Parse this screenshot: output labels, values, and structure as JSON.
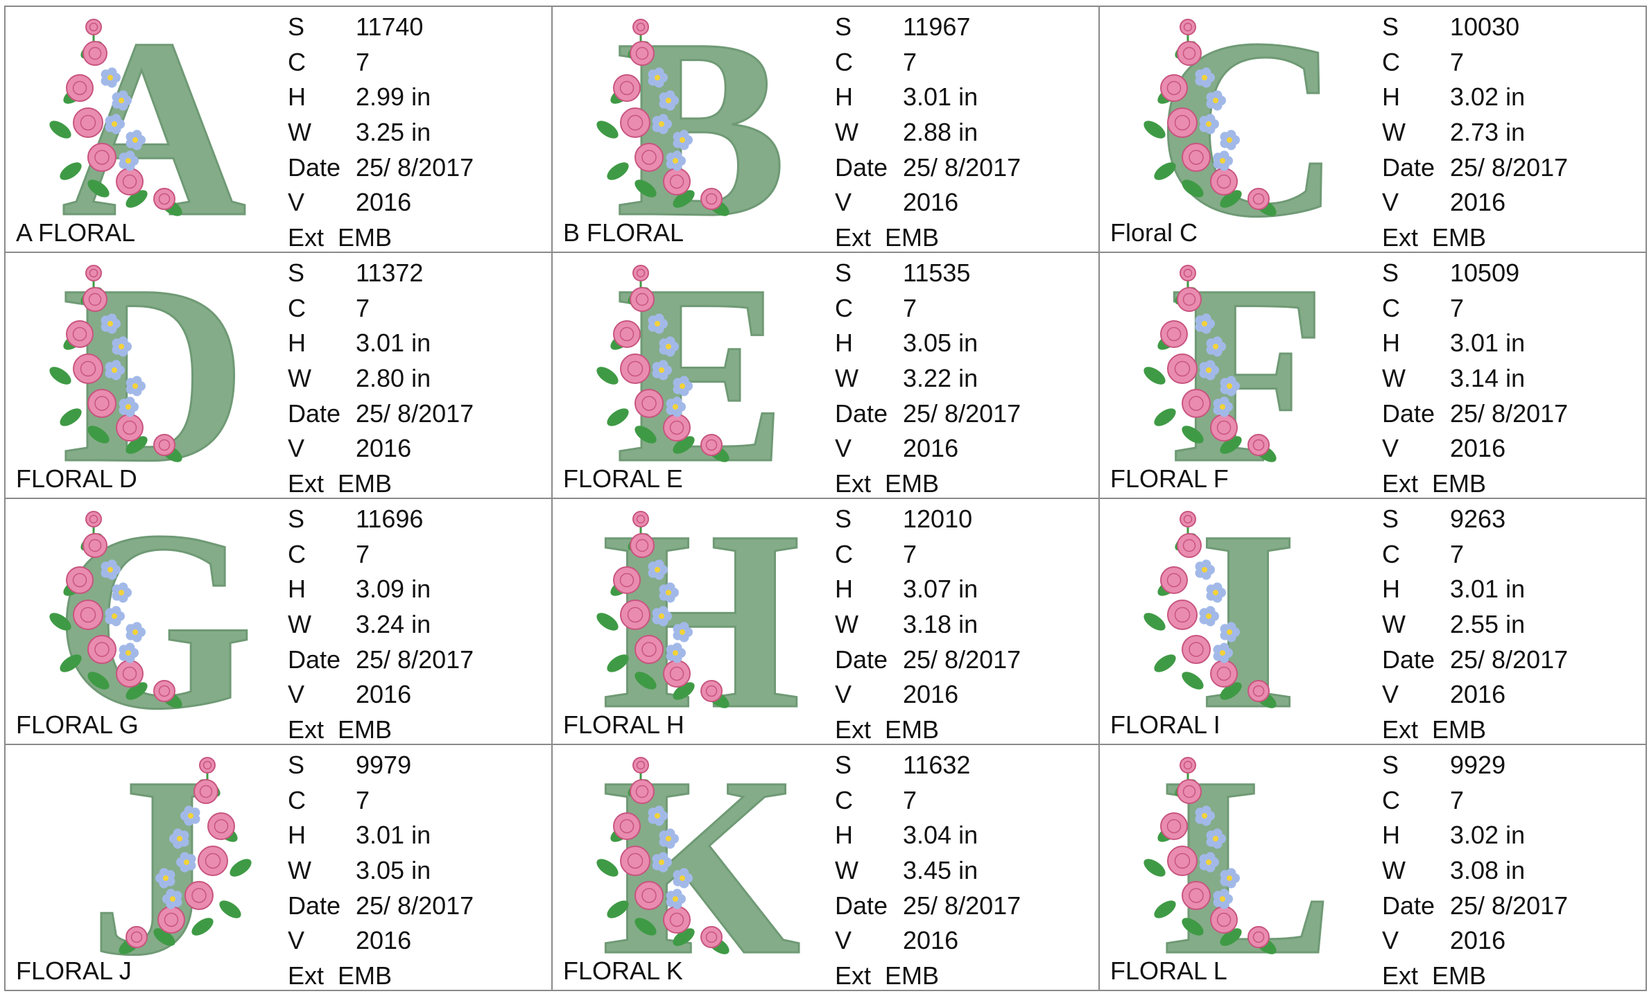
{
  "colors": {
    "letter": "#84ac88",
    "letter_stitch": "#6f9a75",
    "rose": "#e98cb0",
    "rose_dark": "#c8557f",
    "forget_me_not": "#a2b9e8",
    "flower_center": "#f3d23a",
    "leaf": "#3f9a45",
    "grid_line": "#8a8a8a"
  },
  "labels": {
    "stitches": "S",
    "colors": "C",
    "height": "H",
    "width": "W",
    "date": "Date",
    "version": "V",
    "extension": "Ext"
  },
  "designs": [
    {
      "letter": "A",
      "name": "A FLORAL",
      "stitches": "11740",
      "colors": "7",
      "height": "2.99 in",
      "width": "3.25 in",
      "date": "25/ 8/2017",
      "version": "2016",
      "ext": "EMB",
      "flower_icon": "rose-cluster-left-icon"
    },
    {
      "letter": "B",
      "name": "B FLORAL",
      "stitches": "11967",
      "colors": "7",
      "height": "3.01 in",
      "width": "2.88 in",
      "date": "25/ 8/2017",
      "version": "2016",
      "ext": "EMB",
      "flower_icon": "rose-cluster-left-icon"
    },
    {
      "letter": "C",
      "name": "Floral C",
      "stitches": "10030",
      "colors": "7",
      "height": "3.02 in",
      "width": "2.73 in",
      "date": "25/ 8/2017",
      "version": "2016",
      "ext": "EMB",
      "flower_icon": "rose-cluster-left-icon"
    },
    {
      "letter": "D",
      "name": "FLORAL D",
      "stitches": "11372",
      "colors": "7",
      "height": "3.01 in",
      "width": "2.80 in",
      "date": "25/ 8/2017",
      "version": "2016",
      "ext": "EMB",
      "flower_icon": "rose-cluster-left-icon"
    },
    {
      "letter": "E",
      "name": "FLORAL E",
      "stitches": "11535",
      "colors": "7",
      "height": "3.05 in",
      "width": "3.22 in",
      "date": "25/ 8/2017",
      "version": "2016",
      "ext": "EMB",
      "flower_icon": "rose-cluster-left-icon"
    },
    {
      "letter": "F",
      "name": "FLORAL F",
      "stitches": "10509",
      "colors": "7",
      "height": "3.01 in",
      "width": "3.14 in",
      "date": "25/ 8/2017",
      "version": "2016",
      "ext": "EMB",
      "flower_icon": "rose-cluster-left-icon"
    },
    {
      "letter": "G",
      "name": "FLORAL G",
      "stitches": "11696",
      "colors": "7",
      "height": "3.09 in",
      "width": "3.24 in",
      "date": "25/ 8/2017",
      "version": "2016",
      "ext": "EMB",
      "flower_icon": "rose-cluster-left-icon"
    },
    {
      "letter": "H",
      "name": "FLORAL H",
      "stitches": "12010",
      "colors": "7",
      "height": "3.07 in",
      "width": "3.18 in",
      "date": "25/ 8/2017",
      "version": "2016",
      "ext": "EMB",
      "flower_icon": "rose-cluster-left-icon"
    },
    {
      "letter": "I",
      "name": "FLORAL I",
      "stitches": "9263",
      "colors": "7",
      "height": "3.01 in",
      "width": "2.55 in",
      "date": "25/ 8/2017",
      "version": "2016",
      "ext": "EMB",
      "flower_icon": "rose-cluster-left-icon"
    },
    {
      "letter": "J",
      "name": "FLORAL J",
      "stitches": "9979",
      "colors": "7",
      "height": "3.01 in",
      "width": "3.05 in",
      "date": "25/ 8/2017",
      "version": "2016",
      "ext": "EMB",
      "flower_icon": "rose-cluster-right-icon"
    },
    {
      "letter": "K",
      "name": "FLORAL K",
      "stitches": "11632",
      "colors": "7",
      "height": "3.04 in",
      "width": "3.45 in",
      "date": "25/ 8/2017",
      "version": "2016",
      "ext": "EMB",
      "flower_icon": "rose-cluster-left-icon"
    },
    {
      "letter": "L",
      "name": "FLORAL L",
      "stitches": "9929",
      "colors": "7",
      "height": "3.02 in",
      "width": "3.08 in",
      "date": "25/ 8/2017",
      "version": "2016",
      "ext": "EMB",
      "flower_icon": "rose-cluster-left-icon"
    }
  ]
}
